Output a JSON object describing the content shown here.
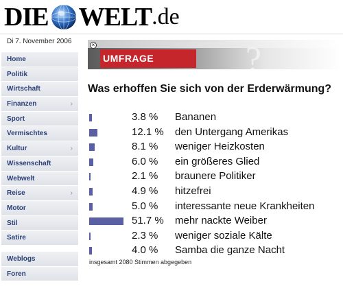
{
  "header": {
    "logo_left": "DIE",
    "logo_right": "WELT",
    "logo_tld": ".de",
    "date": "Di 7. November 2006"
  },
  "sidebar": {
    "items": [
      {
        "label": "Home",
        "has_submenu": false
      },
      {
        "label": "Politik",
        "has_submenu": false
      },
      {
        "label": "Wirtschaft",
        "has_submenu": false
      },
      {
        "label": "Finanzen",
        "has_submenu": true
      },
      {
        "label": "Sport",
        "has_submenu": false
      },
      {
        "label": "Vermischtes",
        "has_submenu": false
      },
      {
        "label": "Kultur",
        "has_submenu": true
      },
      {
        "label": "Wissenschaft",
        "has_submenu": false
      },
      {
        "label": "Webwelt",
        "has_submenu": false
      },
      {
        "label": "Reise",
        "has_submenu": true
      },
      {
        "label": "Motor",
        "has_submenu": false
      },
      {
        "label": "Stil",
        "has_submenu": false
      },
      {
        "label": "Satire",
        "has_submenu": false
      }
    ],
    "extra_items": [
      {
        "label": "Weblogs"
      },
      {
        "label": "Foren"
      }
    ],
    "chevron": "›"
  },
  "poll": {
    "banner_label": "UMFRAGE",
    "question": "Was erhoffen Sie sich von der Erderwärmung?",
    "results": [
      {
        "percent": 3.8,
        "percent_label": "3.8 %",
        "answer": "Bananen"
      },
      {
        "percent": 12.1,
        "percent_label": "12.1 %",
        "answer": "den Untergang Amerikas"
      },
      {
        "percent": 8.1,
        "percent_label": "8.1 %",
        "answer": "weniger Heizkosten"
      },
      {
        "percent": 6.0,
        "percent_label": "6.0 %",
        "answer": "ein größeres Glied"
      },
      {
        "percent": 2.1,
        "percent_label": "2.1 %",
        "answer": "braunere Politiker"
      },
      {
        "percent": 4.9,
        "percent_label": "4.9 %",
        "answer": "hitzefrei"
      },
      {
        "percent": 5.0,
        "percent_label": "5.0 %",
        "answer": "interessante neue Krankheiten"
      },
      {
        "percent": 51.7,
        "percent_label": "51.7 %",
        "answer": "mehr nackte Weiber"
      },
      {
        "percent": 2.3,
        "percent_label": "2.3 %",
        "answer": "weniger soziale Kälte"
      },
      {
        "percent": 4.0,
        "percent_label": "4.0 %",
        "answer": "Samba die ganze Nacht"
      }
    ],
    "total_text": "insgesamt 2080 Stimmen abgegeben",
    "bar_color": "#5b5fa3",
    "banner_color": "#c5262c"
  }
}
